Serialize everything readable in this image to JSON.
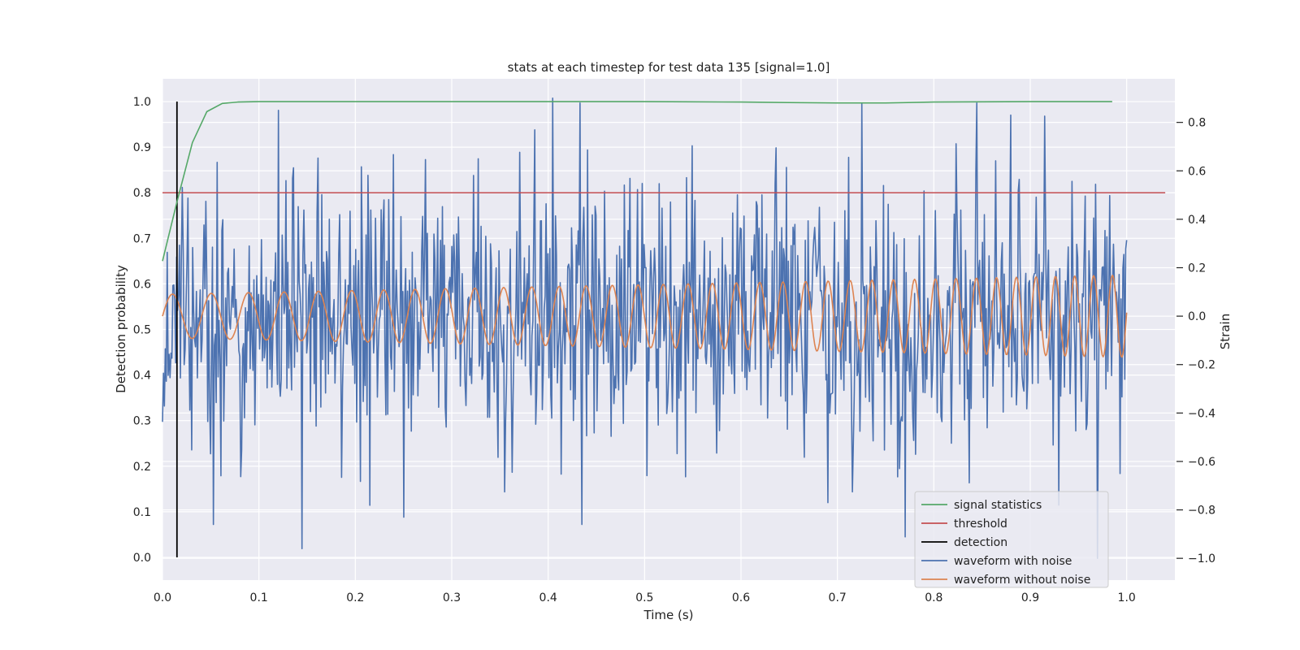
{
  "chart_data": {
    "type": "line",
    "title": "stats at each timestep for test data 135 [signal=1.0]",
    "xlabel": "Time (s)",
    "ylabel": "Detection probability",
    "y2label": "Strain",
    "xlim": [
      0.0,
      1.05
    ],
    "ylim": [
      -0.05,
      1.05
    ],
    "y2lim": [
      -1.09,
      0.98
    ],
    "x_ticks": [
      "0.0",
      "0.1",
      "0.2",
      "0.3",
      "0.4",
      "0.5",
      "0.6",
      "0.7",
      "0.8",
      "0.9",
      "1.0"
    ],
    "y_ticks": [
      "0.0",
      "0.1",
      "0.2",
      "0.3",
      "0.4",
      "0.5",
      "0.6",
      "0.7",
      "0.8",
      "0.9",
      "1.0"
    ],
    "y2_ticks": [
      "−1.0",
      "−0.8",
      "−0.6",
      "−0.4",
      "−0.2",
      "0.0",
      "0.2",
      "0.4",
      "0.6",
      "0.8"
    ],
    "grid": true,
    "legend_position": "lower-right",
    "series": [
      {
        "name": "signal statistics",
        "axis": "left",
        "color": "#55a868",
        "x": [
          0.0,
          0.015,
          0.031,
          0.046,
          0.062,
          0.078,
          0.1,
          0.2,
          0.3,
          0.4,
          0.5,
          0.6,
          0.65,
          0.7,
          0.75,
          0.8,
          0.9,
          0.985
        ],
        "y": [
          0.65,
          0.78,
          0.91,
          0.978,
          0.996,
          0.999,
          1.0,
          1.0,
          1.0,
          1.0,
          1.0,
          0.999,
          0.998,
          0.997,
          0.997,
          0.999,
          1.0,
          1.0
        ]
      },
      {
        "name": "threshold",
        "axis": "left",
        "color": "#c44e52",
        "x": [
          0.0,
          1.04
        ],
        "y": [
          0.8,
          0.8
        ]
      },
      {
        "name": "detection",
        "axis": "left",
        "color": "#000000",
        "x": [
          0.015,
          0.015
        ],
        "y": [
          0.0,
          1.0
        ]
      },
      {
        "name": "waveform with noise",
        "axis": "right",
        "color": "#4c72b0",
        "note_hidden": "",
        "samples": 1024,
        "std": 0.28,
        "x_range": [
          0.0,
          1.0
        ],
        "peaks": [
          {
            "x": 0.405,
            "y": 0.9
          },
          {
            "x": 0.12,
            "y": 0.85
          },
          {
            "x": 0.145,
            "y": -0.96
          },
          {
            "x": 0.053,
            "y": -0.86
          },
          {
            "x": 0.25,
            "y": -0.83
          },
          {
            "x": 0.435,
            "y": -0.86
          },
          {
            "x": 0.97,
            "y": -1.0
          },
          {
            "x": 0.88,
            "y": 0.83
          },
          {
            "x": 0.69,
            "y": -0.77
          },
          {
            "x": 0.93,
            "y": -0.78
          }
        ]
      },
      {
        "name": "waveform without noise",
        "axis": "right",
        "color": "#dd8452",
        "samples": 1024,
        "x_range": [
          0.0,
          1.0
        ],
        "amplitude_start": 0.09,
        "amplitude_end": 0.17,
        "freq_start_hz": 24,
        "freq_end_hz": 52
      }
    ]
  }
}
